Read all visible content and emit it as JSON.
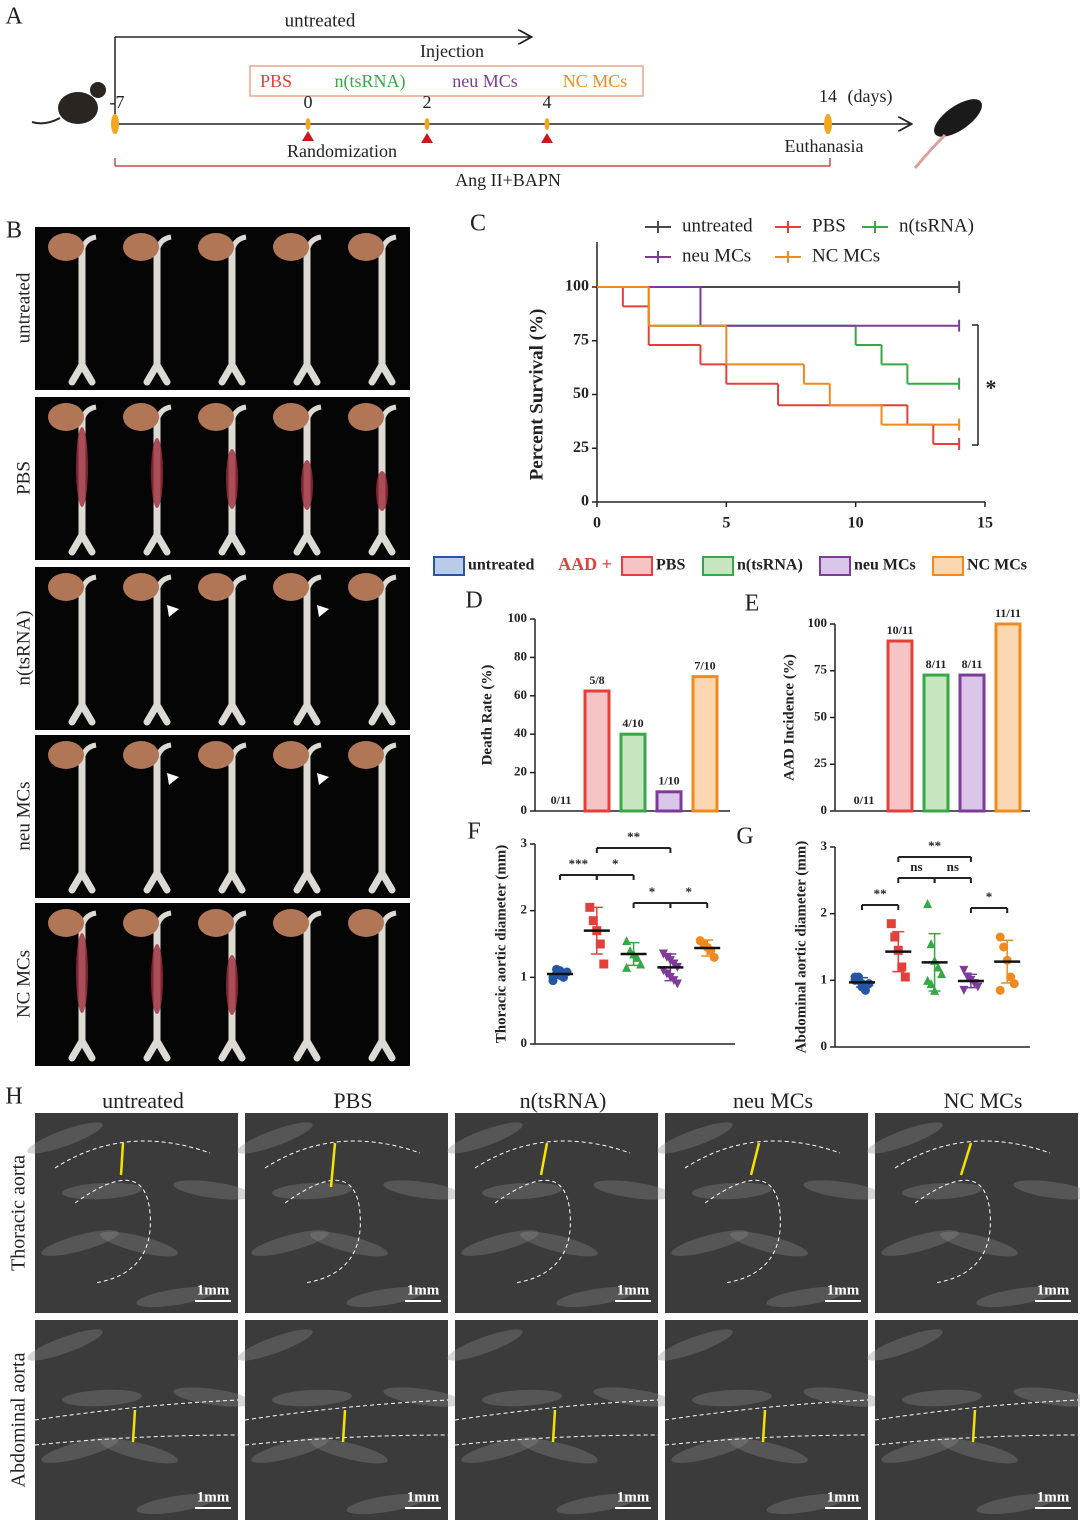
{
  "groups": {
    "names": [
      "untreated",
      "PBS",
      "n(tsRNA)",
      "neu MCs",
      "NC MCs"
    ],
    "colors": [
      "#2456a4",
      "#e3403c",
      "#36a845",
      "#7e3b9a",
      "#f08a1c"
    ],
    "fills": [
      "#b9cbe9",
      "#f6c4c4",
      "#c6e6bf",
      "#dac6e8",
      "#fbd8b2"
    ]
  },
  "panel_a": {
    "label": "A",
    "injection": "Injection",
    "days": [
      -7,
      0,
      2,
      4,
      14
    ],
    "days_unit": "(days)",
    "randomization": "Randomization",
    "euthanasia": "Euthanasia",
    "treatment": "Ang II+BAPN"
  },
  "panel_b": {
    "label": "B"
  },
  "legend": {
    "aad": "AAD +"
  },
  "panel_h": {
    "label": "H",
    "rows": [
      "Thoracic aorta",
      "Abdominal aorta"
    ],
    "scale": "1mm"
  },
  "chart_data": [
    {
      "type": "line",
      "label": "C",
      "ylabel": "Percent Survival (%)",
      "xlim": [
        0,
        15
      ],
      "ylim": [
        0,
        100
      ],
      "xticks": [
        0,
        5,
        10,
        15
      ],
      "yticks": [
        0,
        25,
        50,
        75,
        100
      ],
      "annotation": "*",
      "series": [
        {
          "name": "untreated",
          "color": "#4a4a4a",
          "x": [
            0,
            14
          ],
          "values": [
            100,
            100
          ]
        },
        {
          "name": "PBS",
          "color": "#e3403c",
          "x": [
            0,
            1,
            2,
            4,
            5,
            7,
            12,
            13,
            14
          ],
          "values": [
            100,
            91,
            73,
            64,
            55,
            45,
            36,
            27,
            27
          ]
        },
        {
          "name": "n(tsRNA)",
          "color": "#36a845",
          "x": [
            0,
            2,
            10,
            11,
            12,
            14
          ],
          "values": [
            100,
            82,
            73,
            64,
            55,
            55
          ]
        },
        {
          "name": "neu MCs",
          "color": "#7e3b9a",
          "x": [
            0,
            4,
            14
          ],
          "values": [
            100,
            82,
            82
          ]
        },
        {
          "name": "NC MCs",
          "color": "#f08a1c",
          "x": [
            0,
            2,
            5,
            8,
            9,
            11,
            14
          ],
          "values": [
            100,
            82,
            64,
            55,
            45,
            36,
            36
          ]
        }
      ]
    },
    {
      "type": "bar",
      "label": "D",
      "ylabel": "Death Rate (%)",
      "ylim": [
        0,
        100
      ],
      "yticks": [
        0,
        20,
        40,
        60,
        80,
        100
      ],
      "values": [
        0,
        62.5,
        40,
        10,
        70
      ],
      "value_labels": [
        "0/11",
        "5/8",
        "4/10",
        "1/10",
        "7/10"
      ]
    },
    {
      "type": "bar",
      "label": "E",
      "ylabel": "AAD Incidence (%)",
      "ylim": [
        0,
        100
      ],
      "yticks": [
        0,
        25,
        50,
        75,
        100
      ],
      "values": [
        0,
        90.9,
        72.7,
        72.7,
        100
      ],
      "value_labels": [
        "0/11",
        "10/11",
        "8/11",
        "8/11",
        "11/11"
      ]
    },
    {
      "type": "scatter",
      "label": "F",
      "ylabel": "Thoracic aortic diameter (mm)",
      "ylim": [
        0,
        3
      ],
      "yticks": [
        0,
        1,
        2,
        3
      ],
      "points": [
        [
          1.0,
          1.05,
          1.1,
          1.0,
          1.08,
          0.95,
          1.12,
          1.03
        ],
        [
          2.05,
          1.85,
          1.7,
          1.5,
          1.2
        ],
        [
          1.55,
          1.4,
          1.35,
          1.3,
          1.2,
          1.15
        ],
        [
          1.35,
          1.3,
          1.25,
          1.2,
          1.15,
          1.1,
          1.05,
          1.0,
          0.95,
          0.9
        ],
        [
          1.55,
          1.5,
          1.45,
          1.4,
          1.3
        ]
      ],
      "means": [
        1.05,
        1.7,
        1.35,
        1.15,
        1.44
      ],
      "sds": [
        0.06,
        0.35,
        0.17,
        0.2,
        0.12
      ],
      "significance": [
        "***",
        "*",
        "**",
        "*",
        "*"
      ]
    },
    {
      "type": "scatter",
      "label": "G",
      "ylabel": "Abdominal aortic diameter (mm)",
      "ylim": [
        0,
        3
      ],
      "yticks": [
        0,
        1,
        2,
        3
      ],
      "points": [
        [
          1.05,
          1.0,
          0.95,
          0.9,
          0.95,
          1.0,
          1.05,
          0.9,
          0.85
        ],
        [
          1.85,
          1.65,
          1.45,
          1.2,
          1.05
        ],
        [
          2.15,
          1.55,
          1.3,
          1.2,
          1.1,
          1.0,
          0.95,
          0.85
        ],
        [
          1.15,
          1.05,
          1.0,
          0.95,
          0.9,
          0.85
        ],
        [
          1.65,
          1.5,
          1.3,
          1.05,
          0.95,
          0.85
        ]
      ],
      "means": [
        0.97,
        1.43,
        1.27,
        0.99,
        1.28
      ],
      "sds": [
        0.07,
        0.3,
        0.43,
        0.1,
        0.32
      ],
      "significance": [
        "**",
        "**",
        "ns",
        "ns",
        "*"
      ]
    }
  ]
}
